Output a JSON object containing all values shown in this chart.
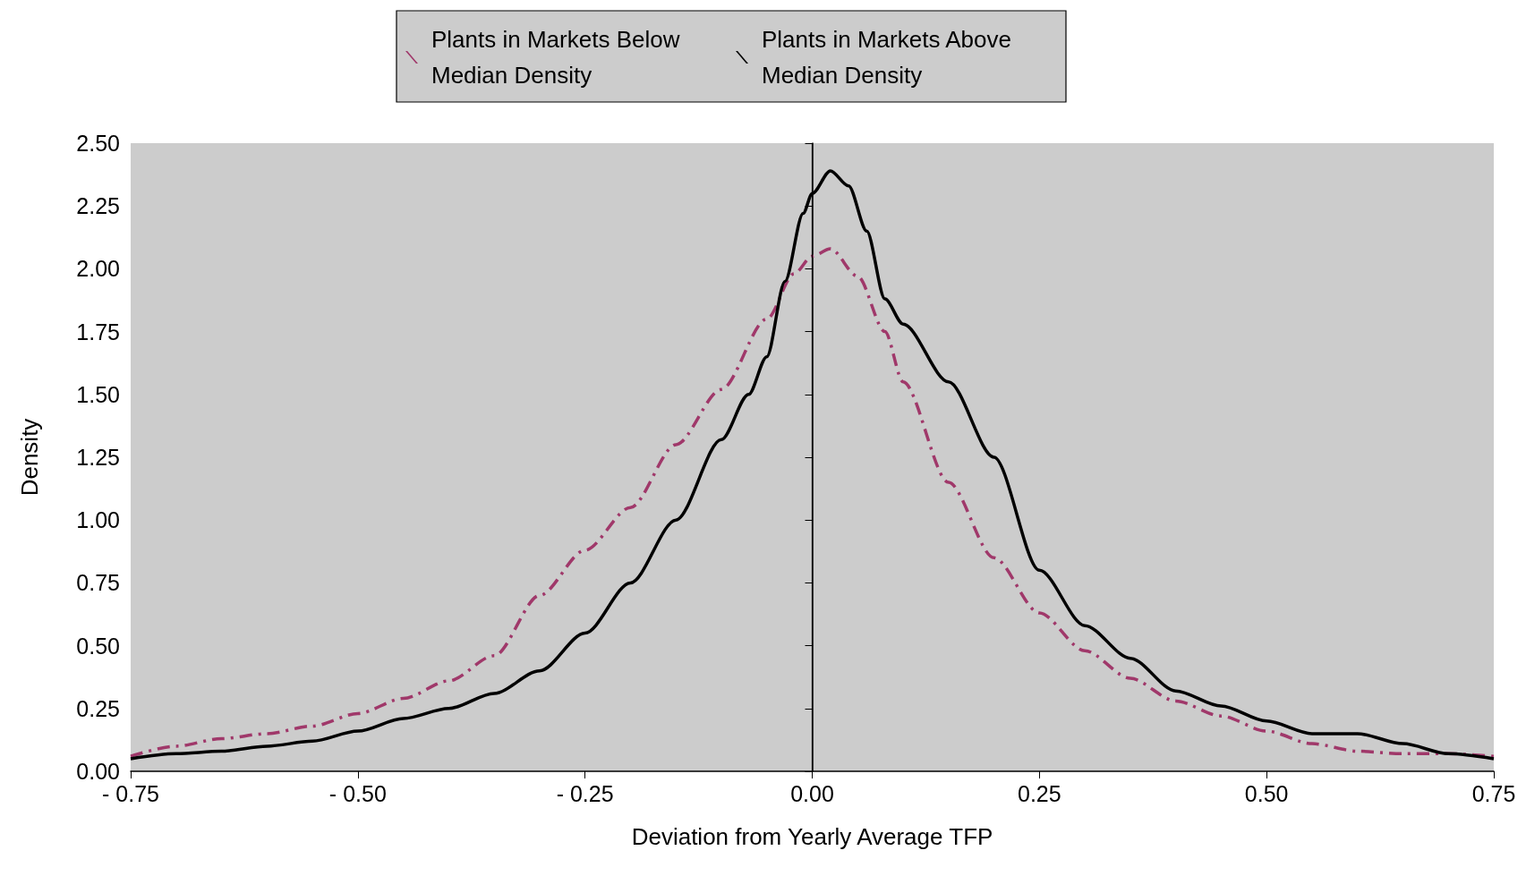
{
  "chart_data": {
    "type": "line",
    "xlabel": "Deviation from Yearly Average TFP",
    "ylabel": "Density",
    "xlim": [
      -0.75,
      0.75
    ],
    "xticks": [
      {
        "value": -0.75,
        "label": "- 0.75"
      },
      {
        "value": -0.5,
        "label": "- 0.50"
      },
      {
        "value": -0.25,
        "label": "- 0.25"
      },
      {
        "value": 0,
        "label": "0.00"
      },
      {
        "value": 0.25,
        "label": "0.25"
      },
      {
        "value": 0.5,
        "label": "0.50"
      },
      {
        "value": 0.75,
        "label": "0.75"
      }
    ],
    "ylim": [
      0,
      2.5
    ],
    "yticks": [
      {
        "value": 0,
        "label": "0.00"
      },
      {
        "value": 0.25,
        "label": "0.25"
      },
      {
        "value": 0.5,
        "label": "0.50"
      },
      {
        "value": 0.75,
        "label": "0.75"
      },
      {
        "value": 1,
        "label": "1.00"
      },
      {
        "value": 1.25,
        "label": "1.25"
      },
      {
        "value": 1.5,
        "label": "1.50"
      },
      {
        "value": 1.75,
        "label": "1.75"
      },
      {
        "value": 2,
        "label": "2.00"
      },
      {
        "value": 2.25,
        "label": "2.25"
      },
      {
        "value": 2.5,
        "label": "2.50"
      }
    ],
    "grid": false,
    "legend": "top",
    "marker": "none",
    "ref_lines": [
      {
        "axis": "x",
        "value": 0,
        "color": "#000000"
      }
    ],
    "series": [
      {
        "name": "Plants in Markets Below Median Density",
        "color": "#a0386a",
        "line_style": "dashed",
        "x": [
          -0.75,
          -0.7,
          -0.65,
          -0.6,
          -0.55,
          -0.5,
          -0.45,
          -0.4,
          -0.35,
          -0.3,
          -0.25,
          -0.2,
          -0.15,
          -0.1,
          -0.05,
          -0.02,
          0,
          0.02,
          0.05,
          0.08,
          0.1,
          0.15,
          0.2,
          0.25,
          0.3,
          0.35,
          0.4,
          0.45,
          0.5,
          0.55,
          0.6,
          0.65,
          0.7,
          0.75
        ],
        "values": [
          0.06,
          0.1,
          0.13,
          0.15,
          0.18,
          0.23,
          0.29,
          0.36,
          0.46,
          0.7,
          0.88,
          1.05,
          1.3,
          1.52,
          1.8,
          1.98,
          2.05,
          2.08,
          1.97,
          1.75,
          1.55,
          1.15,
          0.85,
          0.63,
          0.48,
          0.37,
          0.28,
          0.22,
          0.16,
          0.11,
          0.08,
          0.07,
          0.07,
          0.06
        ]
      },
      {
        "name": "Plants in Markets Above Median Density",
        "color": "#000000",
        "line_style": "solid",
        "x": [
          -0.75,
          -0.7,
          -0.65,
          -0.6,
          -0.55,
          -0.5,
          -0.45,
          -0.4,
          -0.35,
          -0.3,
          -0.25,
          -0.2,
          -0.15,
          -0.1,
          -0.07,
          -0.05,
          -0.03,
          -0.01,
          0,
          0.02,
          0.04,
          0.06,
          0.08,
          0.1,
          0.15,
          0.2,
          0.25,
          0.3,
          0.35,
          0.4,
          0.45,
          0.5,
          0.55,
          0.6,
          0.65,
          0.7,
          0.75
        ],
        "values": [
          0.05,
          0.07,
          0.08,
          0.1,
          0.12,
          0.16,
          0.21,
          0.25,
          0.31,
          0.4,
          0.55,
          0.75,
          1.0,
          1.32,
          1.5,
          1.65,
          1.95,
          2.22,
          2.3,
          2.39,
          2.33,
          2.15,
          1.88,
          1.78,
          1.55,
          1.25,
          0.8,
          0.58,
          0.45,
          0.32,
          0.26,
          0.2,
          0.15,
          0.15,
          0.11,
          0.07,
          0.05
        ]
      }
    ]
  }
}
